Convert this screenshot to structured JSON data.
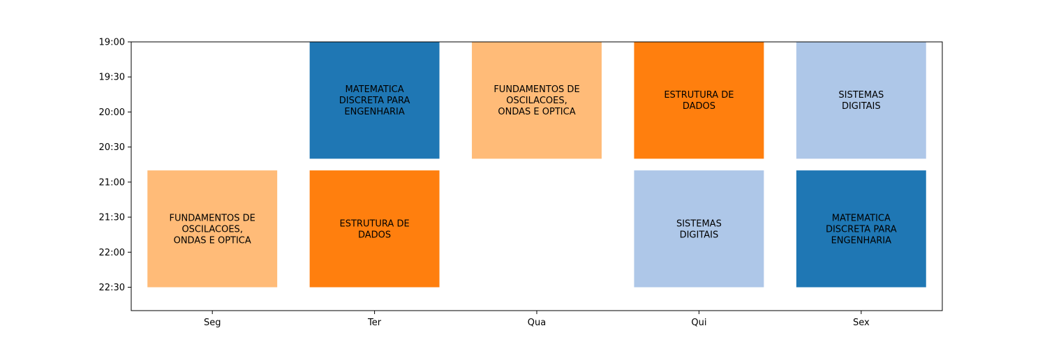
{
  "chart_data": {
    "type": "bar",
    "title": "",
    "xlabel": "",
    "ylabel": "",
    "categories": [
      "Seg",
      "Ter",
      "Qua",
      "Qui",
      "Sex"
    ],
    "y_ticks": [
      "19:00",
      "19:30",
      "20:00",
      "20:30",
      "21:00",
      "21:30",
      "22:00",
      "22:30"
    ],
    "y_range": [
      "19:00",
      "22:50"
    ],
    "y_inverted": true,
    "grid": false,
    "blocks": [
      {
        "day": "Seg",
        "start": "20:50",
        "end": "22:30",
        "label": "FUNDAMENTOS DE\nOSCILACOES,\nONDAS E OPTICA",
        "color": "#ffbb78"
      },
      {
        "day": "Ter",
        "start": "19:00",
        "end": "20:40",
        "label": "MATEMATICA\nDISCRETA PARA\nENGENHARIA",
        "color": "#1f77b4"
      },
      {
        "day": "Ter",
        "start": "20:50",
        "end": "22:30",
        "label": "ESTRUTURA DE\nDADOS",
        "color": "#ff7f0e"
      },
      {
        "day": "Qua",
        "start": "19:00",
        "end": "20:40",
        "label": "FUNDAMENTOS DE\nOSCILACOES,\nONDAS E OPTICA",
        "color": "#ffbb78"
      },
      {
        "day": "Qui",
        "start": "19:00",
        "end": "20:40",
        "label": "ESTRUTURA DE\nDADOS",
        "color": "#ff7f0e"
      },
      {
        "day": "Qui",
        "start": "20:50",
        "end": "22:30",
        "label": "SISTEMAS\nDIGITAIS",
        "color": "#aec7e8"
      },
      {
        "day": "Sex",
        "start": "19:00",
        "end": "20:40",
        "label": "SISTEMAS\nDIGITAIS",
        "color": "#aec7e8"
      },
      {
        "day": "Sex",
        "start": "20:50",
        "end": "22:30",
        "label": "MATEMATICA\nDISCRETA PARA\nENGENHARIA",
        "color": "#1f77b4"
      }
    ]
  }
}
